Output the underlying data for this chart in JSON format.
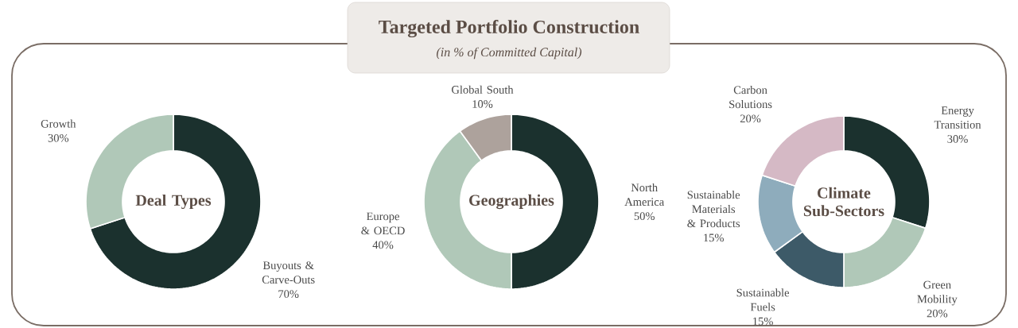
{
  "chart_data": [
    {
      "type": "other",
      "title": "Targeted Portfolio Construction",
      "subtitle": "(in % of Committed Capital)"
    },
    {
      "type": "donut",
      "title": "Deal Types",
      "categories": [
        "Buyouts & Carve-Outs",
        "Growth"
      ],
      "values": [
        70,
        30
      ],
      "value_labels": [
        "70%",
        "30%"
      ],
      "colors": [
        "#1b312e",
        "#b0c8b8"
      ]
    },
    {
      "type": "donut",
      "title": "Geographies",
      "categories": [
        "North America",
        "Europe & OECD",
        "Global South"
      ],
      "values": [
        50,
        40,
        10
      ],
      "value_labels": [
        "50%",
        "40%",
        "10%"
      ],
      "colors": [
        "#1b312e",
        "#b0c8b8",
        "#ada29c"
      ]
    },
    {
      "type": "donut",
      "title": "Climate Sub-Sectors",
      "categories": [
        "Energy Transition",
        "Green Mobility",
        "Sustainable Fuels",
        "Sustainable Materials & Products",
        "Carbon Solutions"
      ],
      "values": [
        30,
        20,
        15,
        15,
        20
      ],
      "value_labels": [
        "30%",
        "20%",
        "15%",
        "15%",
        "20%"
      ],
      "colors": [
        "#1b312e",
        "#b0c8b8",
        "#3d5a68",
        "#8eacbc",
        "#d5b9c5"
      ]
    }
  ]
}
